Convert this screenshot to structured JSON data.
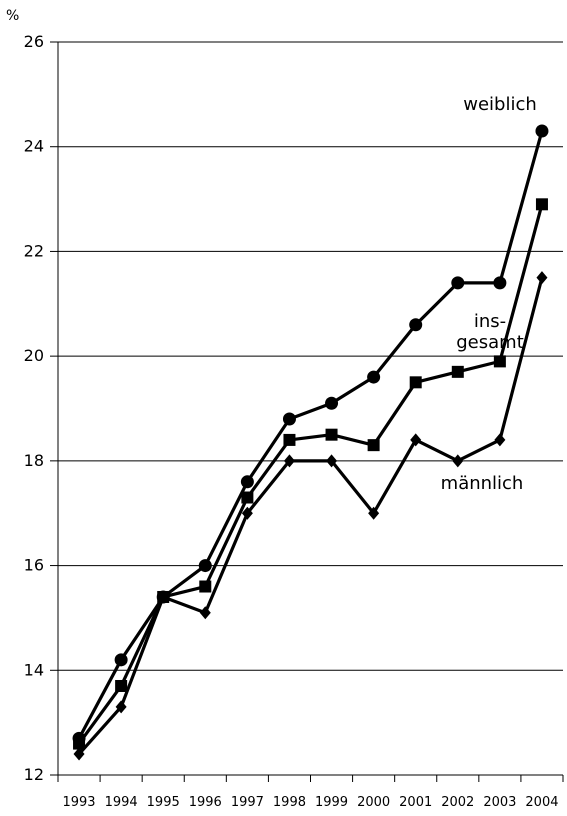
{
  "chart_data": {
    "type": "line",
    "y_label": "%",
    "categories": [
      "1993",
      "1994",
      "1995",
      "1996",
      "1997",
      "1998",
      "1999",
      "2000",
      "2001",
      "2002",
      "2003",
      "2004"
    ],
    "series": [
      {
        "name": "weiblich",
        "color": "#000000",
        "marker": "circle",
        "values": [
          12.7,
          14.2,
          15.4,
          16.0,
          17.6,
          18.8,
          19.1,
          19.6,
          20.6,
          21.4,
          21.4,
          24.3
        ]
      },
      {
        "name": "ins-\ngesamt",
        "color": "#000000",
        "marker": "square",
        "values": [
          12.6,
          13.7,
          15.4,
          15.6,
          17.3,
          18.4,
          18.5,
          18.3,
          19.5,
          19.7,
          19.9,
          22.9
        ]
      },
      {
        "name": "männlich",
        "color": "#000000",
        "marker": "diamond",
        "values": [
          12.4,
          13.3,
          15.4,
          15.1,
          17.0,
          18.0,
          18.0,
          17.0,
          18.4,
          18.0,
          18.4,
          21.5
        ]
      }
    ],
    "ylim": [
      12,
      26
    ],
    "yticks": [
      12,
      14,
      16,
      18,
      20,
      22,
      24,
      26
    ],
    "grid": true
  }
}
